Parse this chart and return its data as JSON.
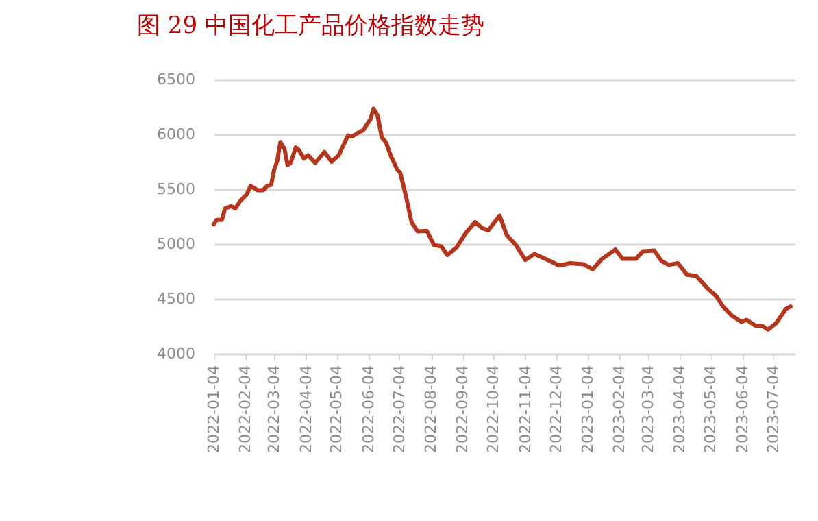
{
  "chart_data": {
    "type": "line",
    "title": "图 29    中国化工产品价格指数走势",
    "x": [
      "2022-01-04",
      "2022-01-07",
      "2022-01-12",
      "2022-01-15",
      "2022-01-21",
      "2022-01-25",
      "2022-01-30",
      "2022-02-05",
      "2022-02-09",
      "2022-02-16",
      "2022-02-21",
      "2022-02-25",
      "2022-03-01",
      "2022-03-04",
      "2022-03-07",
      "2022-03-10",
      "2022-03-14",
      "2022-03-17",
      "2022-03-20",
      "2022-03-25",
      "2022-03-28",
      "2022-04-02",
      "2022-04-06",
      "2022-04-13",
      "2022-04-22",
      "2022-04-29",
      "2022-05-06",
      "2022-05-10",
      "2022-05-15",
      "2022-05-19",
      "2022-05-24",
      "2022-05-30",
      "2022-06-06",
      "2022-06-09",
      "2022-06-13",
      "2022-06-17",
      "2022-06-21",
      "2022-06-26",
      "2022-07-02",
      "2022-07-05",
      "2022-07-11",
      "2022-07-16",
      "2022-07-22",
      "2022-07-31",
      "2022-08-07",
      "2022-08-14",
      "2022-08-20",
      "2022-08-29",
      "2022-09-07",
      "2022-09-16",
      "2022-09-23",
      "2022-09-29",
      "2022-10-10",
      "2022-10-17",
      "2022-10-26",
      "2022-11-04",
      "2022-11-13",
      "2022-11-26",
      "2022-12-07",
      "2022-12-18",
      "2022-12-31",
      "2023-01-09",
      "2023-01-18",
      "2023-01-31",
      "2023-02-07",
      "2023-02-20",
      "2023-02-27",
      "2023-03-10",
      "2023-03-17",
      "2023-03-24",
      "2023-04-02",
      "2023-04-11",
      "2023-04-20",
      "2023-05-01",
      "2023-05-10",
      "2023-05-16",
      "2023-05-25",
      "2023-06-03",
      "2023-06-08",
      "2023-06-17",
      "2023-06-23",
      "2023-06-29",
      "2023-07-07",
      "2023-07-16",
      "2023-07-21"
    ],
    "series": [
      {
        "color": "#b5361c",
        "values": [
          5180,
          5220,
          5220,
          5325,
          5345,
          5325,
          5395,
          5450,
          5530,
          5490,
          5490,
          5530,
          5540,
          5680,
          5760,
          5930,
          5870,
          5720,
          5740,
          5880,
          5860,
          5780,
          5810,
          5740,
          5840,
          5750,
          5810,
          5890,
          5990,
          5980,
          6010,
          6040,
          6140,
          6235,
          6170,
          5970,
          5930,
          5800,
          5680,
          5650,
          5420,
          5200,
          5115,
          5120,
          4990,
          4980,
          4900,
          4970,
          5100,
          5200,
          5145,
          5125,
          5260,
          5080,
          4990,
          4855,
          4910,
          4855,
          4805,
          4825,
          4815,
          4770,
          4865,
          4950,
          4865,
          4865,
          4935,
          4940,
          4845,
          4810,
          4825,
          4720,
          4710,
          4595,
          4520,
          4430,
          4345,
          4290,
          4310,
          4255,
          4255,
          4220,
          4280,
          4405,
          4430
        ]
      }
    ],
    "xlim": [
      "2022-01-04",
      "2023-07-25"
    ],
    "xticks": [
      "2022-01-04",
      "2022-02-04",
      "2022-03-04",
      "2022-04-04",
      "2022-05-04",
      "2022-06-04",
      "2022-07-04",
      "2022-08-04",
      "2022-09-04",
      "2022-10-04",
      "2022-11-04",
      "2022-12-04",
      "2023-01-04",
      "2023-02-04",
      "2023-03-04",
      "2023-04-04",
      "2023-05-04",
      "2023-06-04",
      "2023-07-04"
    ],
    "ylim": [
      4000,
      6500
    ],
    "yticks": [
      4000,
      4500,
      5000,
      5500,
      6000,
      6500
    ],
    "grid": "y",
    "legend": false,
    "marker": "none",
    "line_style": "solid"
  }
}
